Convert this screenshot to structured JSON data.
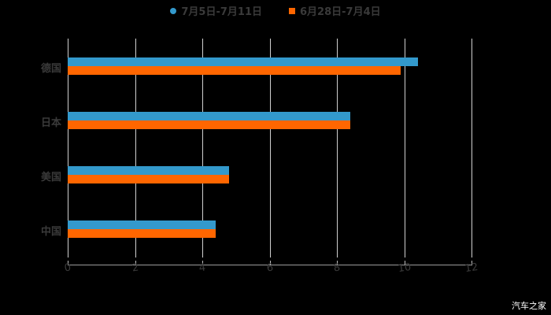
{
  "legend": [
    {
      "label": "7月5日-7月11日",
      "color": "#3399cc",
      "shape": "circle"
    },
    {
      "label": "6月28日-7月4日",
      "color": "#ff6600",
      "shape": "square"
    }
  ],
  "watermark": "汽车之家",
  "chart_data": {
    "type": "bar",
    "orientation": "horizontal",
    "title": "",
    "xlabel": "",
    "ylabel": "",
    "categories": [
      "德国",
      "日本",
      "美国",
      "中国"
    ],
    "series": [
      {
        "name": "7月5日-7月11日",
        "color": "#3399cc",
        "values": [
          10.4,
          8.4,
          4.8,
          4.4
        ]
      },
      {
        "name": "6月28日-7月4日",
        "color": "#ff6600",
        "values": [
          9.9,
          8.4,
          4.8,
          4.4
        ]
      }
    ],
    "xlim": [
      0,
      12
    ],
    "x_ticks": [
      "0",
      "2",
      "4",
      "6",
      "8",
      "10",
      "12"
    ],
    "grid": "vertical",
    "legend_position": "top"
  }
}
